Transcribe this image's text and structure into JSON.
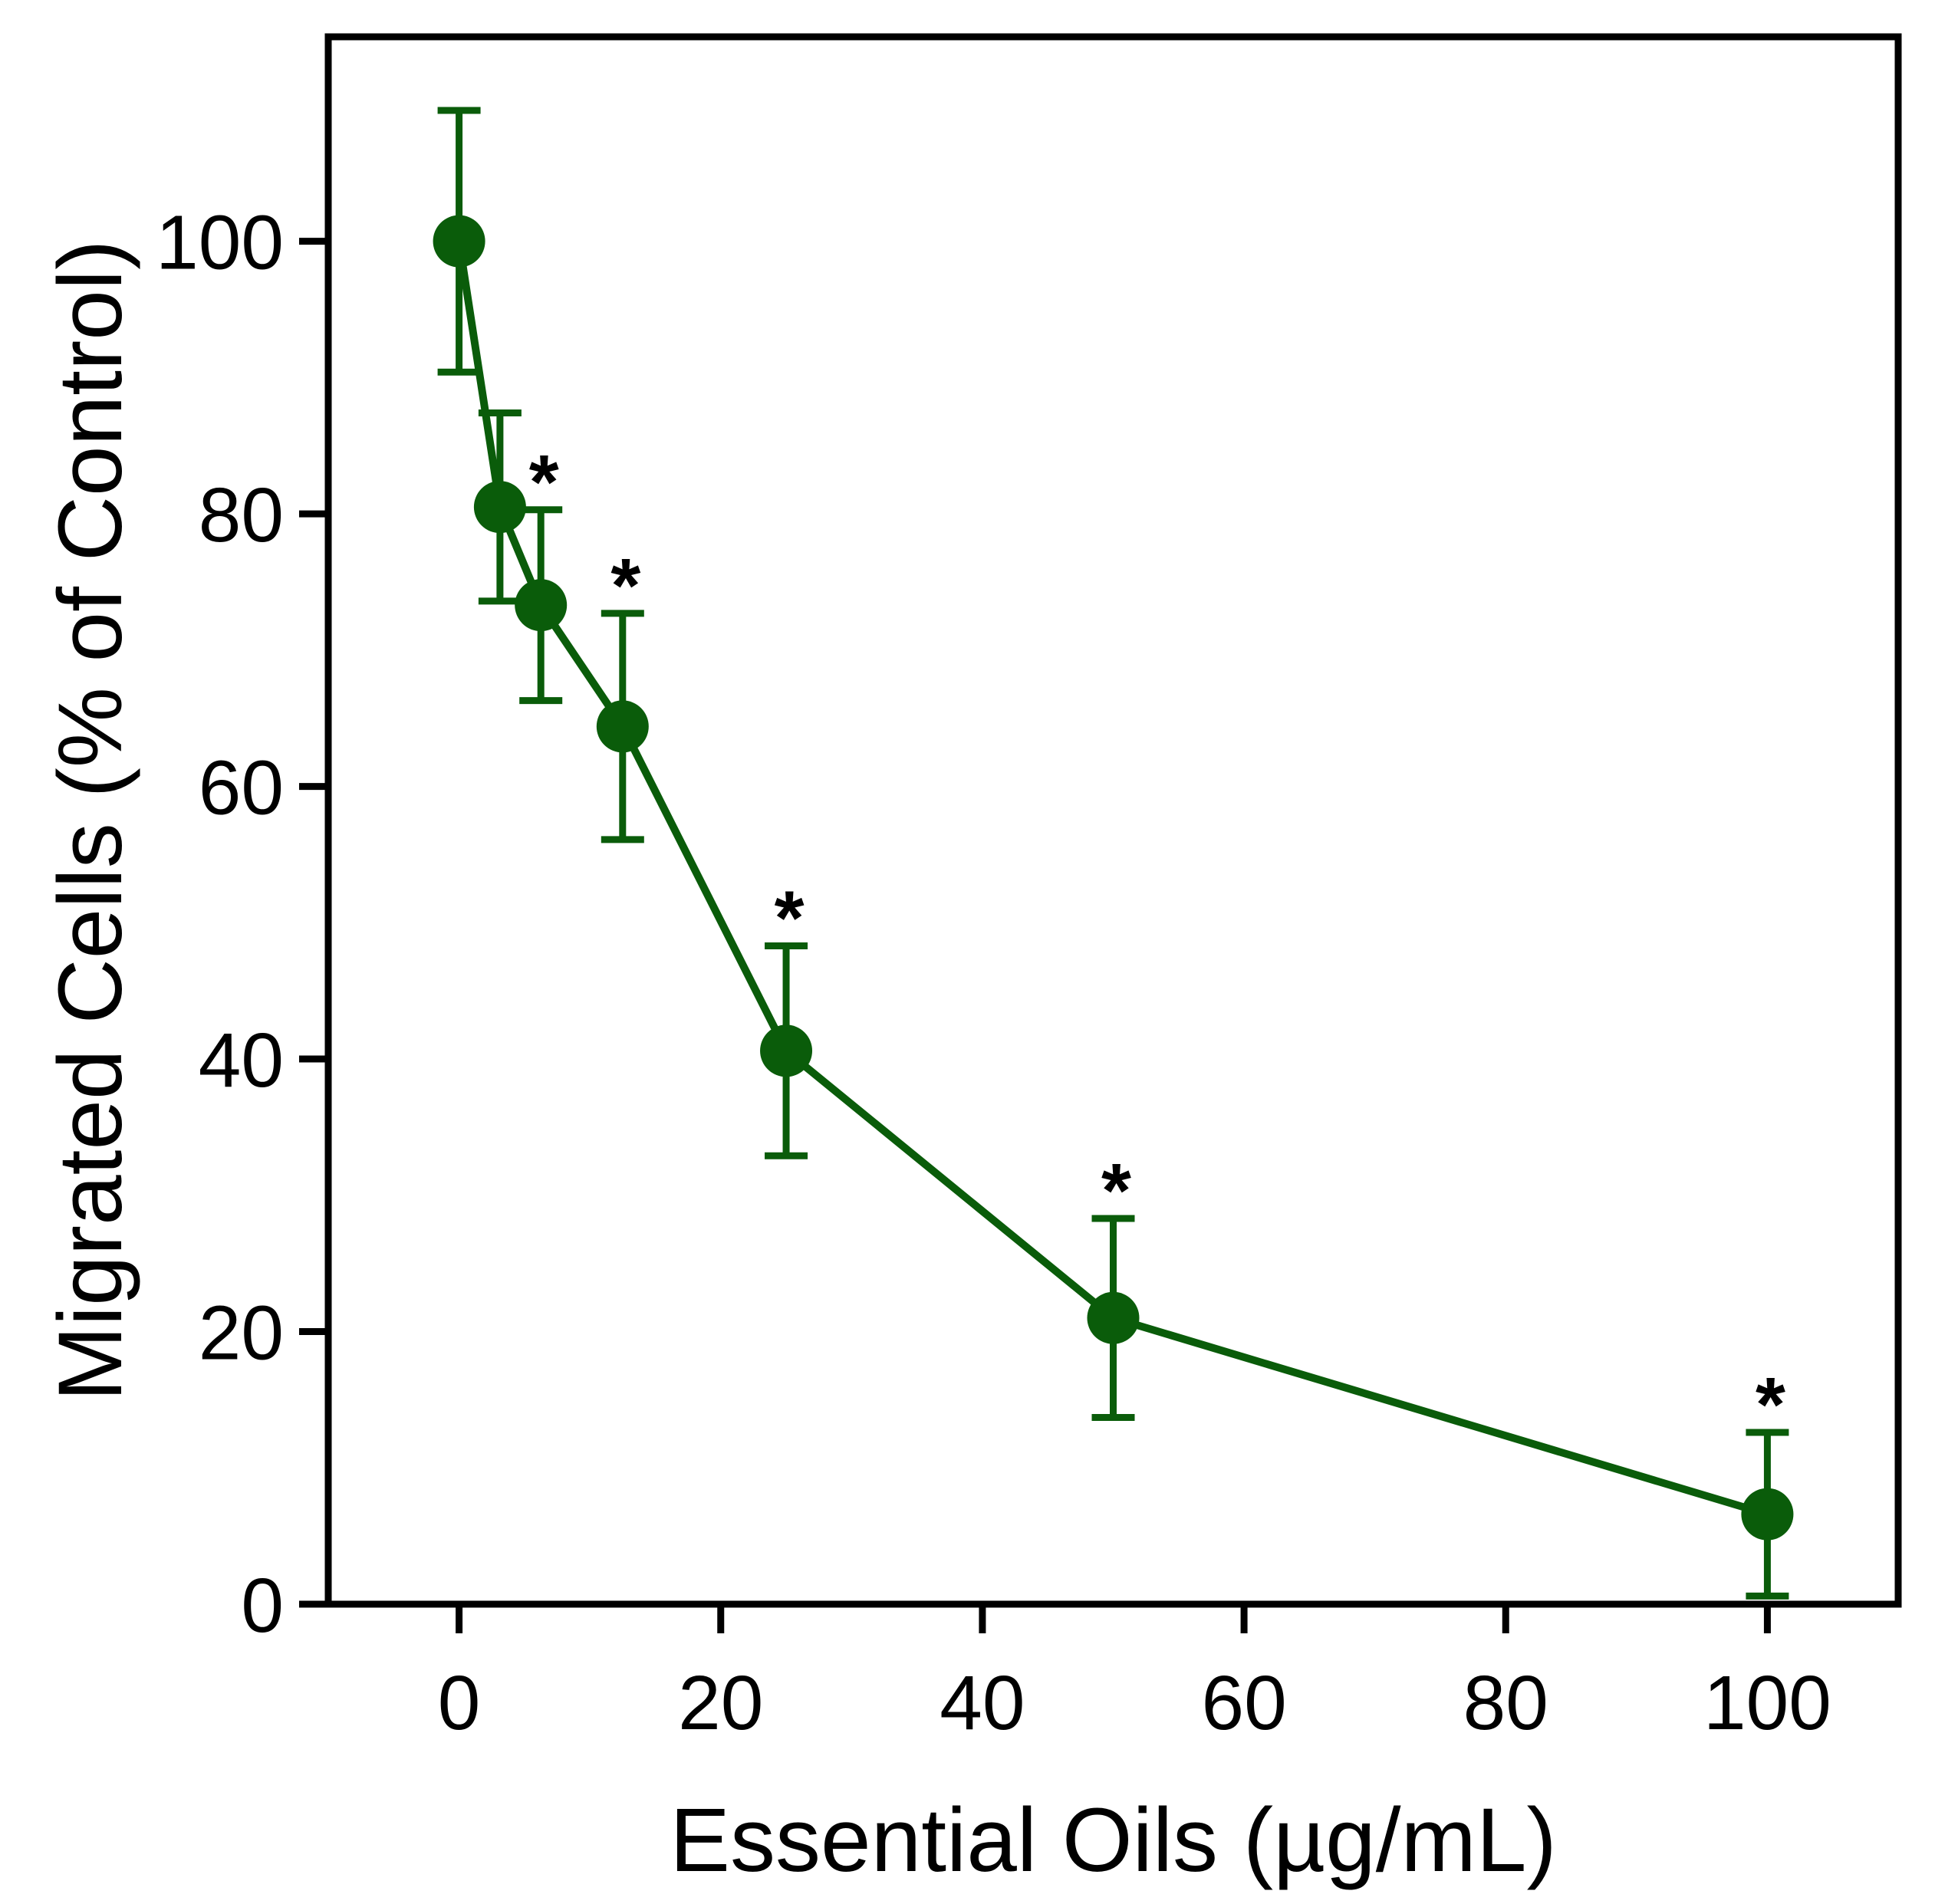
{
  "chart_data": {
    "type": "line",
    "title": "",
    "xlabel": "Essential Oils (µg/mL)",
    "ylabel": "Migrated Cells  (% of Control)",
    "xlim": [
      -10,
      110
    ],
    "ylim": [
      0,
      115
    ],
    "x_ticks": [
      0,
      20,
      40,
      60,
      80,
      100
    ],
    "x_tick_labels": [
      "0",
      "20",
      "40",
      "60",
      "80",
      "100"
    ],
    "y_ticks": [
      0,
      20,
      40,
      60,
      80,
      100
    ],
    "y_tick_labels": [
      "0",
      "20",
      "40",
      "60",
      "80",
      "100"
    ],
    "grid": false,
    "legend": "none",
    "color": "#0a5c0a",
    "series": [
      {
        "name": "Essential Oils",
        "x": [
          0,
          3.125,
          6.25,
          12.5,
          25,
          50,
          100
        ],
        "y": [
          100,
          80.5,
          73.3,
          64.4,
          40.6,
          21.0,
          6.6
        ],
        "error": [
          9.6,
          6.9,
          7.0,
          8.3,
          7.7,
          7.3,
          6.0
        ],
        "significance": [
          "",
          "",
          "*",
          "*",
          "*",
          "*",
          "*"
        ]
      }
    ]
  }
}
